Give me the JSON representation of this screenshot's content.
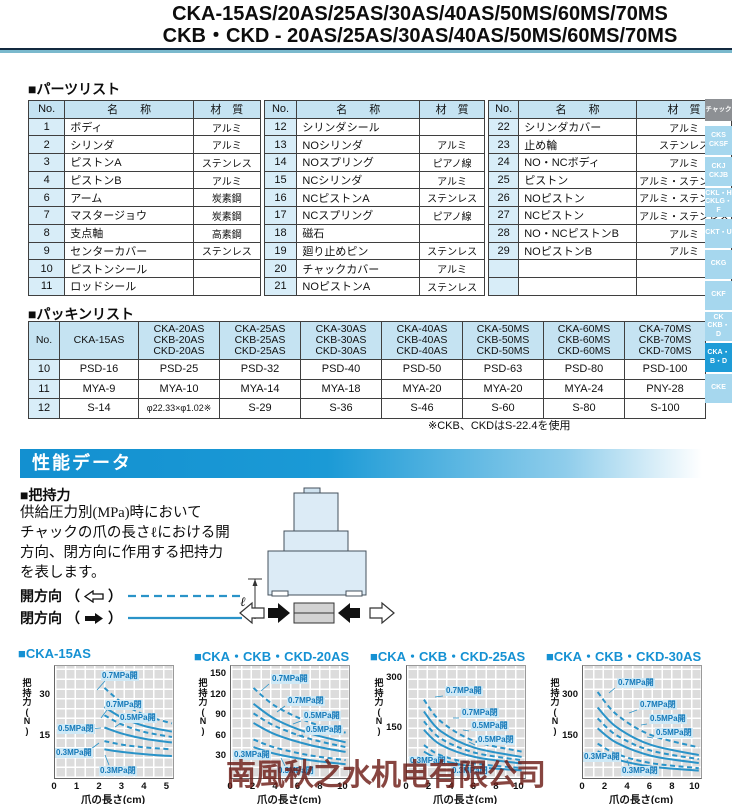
{
  "header": {
    "line1": "CKA-15AS/20AS/25AS/30AS/40AS/50MS/60MS/70MS",
    "line2": "CKB・CKD - 20AS/25AS/30AS/40AS/50MS/60MS/70MS"
  },
  "sidebar": {
    "header": "チャック",
    "active_index": 7,
    "tabs": [
      [
        "CKS",
        "CKSF"
      ],
      [
        "CKJ",
        "CKJB"
      ],
      [
        "CKL・H",
        "CKLG・F"
      ],
      [
        "CKT・U"
      ],
      [
        "CKG"
      ],
      [
        "CKF"
      ],
      [
        "CK",
        "CKB・D"
      ],
      [
        "CKA・B・D"
      ],
      [
        "CKE"
      ]
    ]
  },
  "parts_list": {
    "title": "■パーツリスト",
    "headers": [
      "No.",
      "名　　称",
      "材　質"
    ],
    "tables": [
      [
        [
          "1",
          "ボディ",
          "アルミ"
        ],
        [
          "2",
          "シリンダ",
          "アルミ"
        ],
        [
          "3",
          "ピストンA",
          "ステンレス"
        ],
        [
          "4",
          "ピストンB",
          "アルミ"
        ],
        [
          "6",
          "アーム",
          "炭素鋼"
        ],
        [
          "7",
          "マスタージョウ",
          "炭素鋼"
        ],
        [
          "8",
          "支点軸",
          "高素鋼"
        ],
        [
          "9",
          "センターカバー",
          "ステンレス"
        ],
        [
          "10",
          "ピストンシール",
          ""
        ],
        [
          "11",
          "ロッドシール",
          ""
        ]
      ],
      [
        [
          "12",
          "シリンダシール",
          ""
        ],
        [
          "13",
          "NOシリンダ",
          "アルミ"
        ],
        [
          "14",
          "NOスプリング",
          "ピアノ線"
        ],
        [
          "15",
          "NCシリンダ",
          "アルミ"
        ],
        [
          "16",
          "NCピストンA",
          "ステンレス"
        ],
        [
          "17",
          "NCスプリング",
          "ピアノ線"
        ],
        [
          "18",
          "磁石",
          ""
        ],
        [
          "19",
          "廻り止めピン",
          "ステンレス"
        ],
        [
          "20",
          "チャックカバー",
          "アルミ"
        ],
        [
          "21",
          "NOピストンA",
          "ステンレス"
        ]
      ],
      [
        [
          "22",
          "シリンダカバー",
          "アルミ"
        ],
        [
          "23",
          "止め輪",
          "ステンレス"
        ],
        [
          "24",
          "NO・NCボディ",
          "アルミ"
        ],
        [
          "25",
          "ピストン",
          "アルミ・ステンレス"
        ],
        [
          "26",
          "NOピストン",
          "アルミ・ステンレス"
        ],
        [
          "27",
          "NCピストン",
          "アルミ・ステンレス"
        ],
        [
          "28",
          "NO・NCピストンB",
          "アルミ"
        ],
        [
          "29",
          "NOピストンB",
          "アルミ"
        ],
        [
          "",
          "",
          ""
        ],
        [
          "",
          "",
          ""
        ]
      ]
    ]
  },
  "packing_list": {
    "title": "■パッキンリスト",
    "col_headers": [
      [
        "No."
      ],
      [
        "CKA-15AS"
      ],
      [
        "CKA-20AS",
        "CKB-20AS",
        "CKD-20AS"
      ],
      [
        "CKA-25AS",
        "CKB-25AS",
        "CKD-25AS"
      ],
      [
        "CKA-30AS",
        "CKB-30AS",
        "CKD-30AS"
      ],
      [
        "CKA-40AS",
        "CKB-40AS",
        "CKD-40AS"
      ],
      [
        "CKA-50MS",
        "CKB-50MS",
        "CKD-50MS"
      ],
      [
        "CKA-60MS",
        "CKB-60MS",
        "CKD-60MS"
      ],
      [
        "CKA-70MS",
        "CKB-70MS",
        "CKD-70MS"
      ]
    ],
    "rows": [
      [
        "10",
        "PSD-16",
        "PSD-25",
        "PSD-32",
        "PSD-40",
        "PSD-50",
        "PSD-63",
        "PSD-80",
        "PSD-100"
      ],
      [
        "11",
        "MYA-9",
        "MYA-10",
        "MYA-14",
        "MYA-18",
        "MYA-20",
        "MYA-20",
        "MYA-24",
        "PNY-28"
      ],
      [
        "12",
        "S-14",
        "φ22.33×φ1.02※",
        "S-29",
        "S-36",
        "S-46",
        "S-60",
        "S-80",
        "S-100"
      ]
    ],
    "footnote": "※CKB、CKDはS-22.4を使用"
  },
  "performance": {
    "banner": "性能データ",
    "grip_title": "■把持力",
    "desc_lines": [
      "供給圧力別(MPa)時において",
      "チャックの爪の長さℓにおける開",
      "方向、閉方向に作用する把持力",
      "を表します。"
    ],
    "legend": {
      "open": "開方向",
      "close": "閉方向",
      "po": "（",
      "pc": "）"
    },
    "colors": {
      "curve": "#2a93c8",
      "label_text": "#1478b8",
      "label_bg": "#cfe9f6",
      "title_blue": "#1591d3",
      "banner_blue": "#1b9ad6"
    }
  },
  "chart_data": [
    {
      "type": "line",
      "title": "■CKA-15AS",
      "ylabel": "把持力(N)",
      "xlabel": "爪の長さ(cm)",
      "ymax": 41,
      "xmax": 5.25,
      "yticks": [
        30,
        15
      ],
      "xticks": [
        0,
        1,
        2,
        3,
        4,
        5
      ],
      "series": [
        {
          "label": "0.7MPa開",
          "dashed": true,
          "pts": [
            [
              2.2,
              33
            ],
            [
              3,
              27.5
            ],
            [
              4,
              23
            ],
            [
              5.2,
              20
            ]
          ],
          "lab": [
            46,
            5
          ],
          "lead": [
            50,
            15,
            42,
            24
          ]
        },
        {
          "label": "0.7MPa閉",
          "dashed": false,
          "pts": [
            [
              2.2,
              26
            ],
            [
              3,
              22
            ],
            [
              4,
              19
            ],
            [
              5.2,
              17
            ]
          ],
          "lab": [
            50,
            34
          ],
          "lead": [
            52,
            44,
            46,
            52
          ]
        },
        {
          "label": "0.5MPa開",
          "dashed": true,
          "pts": [
            [
              2.2,
              23
            ],
            [
              3,
              19.5
            ],
            [
              4,
              16.8
            ],
            [
              5.2,
              15
            ]
          ],
          "lab": [
            64,
            47
          ],
          "lead": [
            66,
            57,
            60,
            61
          ]
        },
        {
          "label": "0.5MPa閉",
          "dashed": false,
          "pts": [
            [
              2.2,
              18.5
            ],
            [
              3,
              16.2
            ],
            [
              4,
              14.3
            ],
            [
              5.2,
              13
            ]
          ],
          "lab": [
            2,
            58
          ],
          "lead": [
            34,
            63,
            46,
            62
          ]
        },
        {
          "label": "0.3MPa開",
          "dashed": true,
          "pts": [
            [
              2.2,
              13.5
            ],
            [
              3,
              12.2
            ],
            [
              4,
              11.2
            ],
            [
              5.2,
              10.5
            ]
          ],
          "lab": [
            0,
            82
          ],
          "lead": [
            32,
            86,
            44,
            77
          ]
        },
        {
          "label": "0.3MPa閉",
          "dashed": false,
          "pts": [
            [
              2.2,
              10.5
            ],
            [
              3,
              9.5
            ],
            [
              4,
              8.7
            ],
            [
              5.2,
              8
            ]
          ],
          "lab": [
            44,
            100
          ],
          "lead": [
            54,
            99,
            50,
            89
          ]
        }
      ]
    },
    {
      "type": "line",
      "title": "■CKA・CKB・CKD-20AS",
      "ylabel": "把持力(N)",
      "xlabel": "爪の長さ(cm)",
      "ymax": 163,
      "xmax": 10.5,
      "yticks": [
        150,
        120,
        90,
        60,
        30
      ],
      "xticks": [
        0,
        2,
        4,
        6,
        8,
        10
      ],
      "series": [
        {
          "label": "0.7MPa開",
          "dashed": true,
          "pts": [
            [
              2,
              131
            ],
            [
              4,
              104
            ],
            [
              7,
              81
            ],
            [
              10.2,
              66
            ]
          ],
          "lab": [
            40,
            8
          ],
          "lead": [
            38,
            18,
            30,
            25
          ]
        },
        {
          "label": "0.7MPa閉",
          "dashed": false,
          "pts": [
            [
              2,
              108
            ],
            [
              4,
              85
            ],
            [
              7,
              65
            ],
            [
              10.2,
              52
            ]
          ],
          "lab": [
            56,
            30
          ],
          "lead": [
            54,
            40,
            46,
            46
          ]
        },
        {
          "label": "0.5MPa開",
          "dashed": true,
          "pts": [
            [
              2,
              94
            ],
            [
              4,
              75
            ],
            [
              7,
              57
            ],
            [
              10.2,
              45
            ]
          ],
          "lab": [
            72,
            45
          ],
          "lead": [
            70,
            55,
            62,
            58
          ]
        },
        {
          "label": "0.5MPa閉",
          "dashed": false,
          "pts": [
            [
              2,
              80
            ],
            [
              4,
              63
            ],
            [
              7,
              48
            ],
            [
              10.2,
              38
            ]
          ],
          "lab": [
            74,
            59
          ],
          "lead": [
            72,
            69,
            66,
            70
          ]
        },
        {
          "label": "0.3MPa開",
          "dashed": true,
          "pts": [
            [
              2,
              56
            ],
            [
              4,
              44
            ],
            [
              7,
              33
            ],
            [
              10.2,
              26
            ]
          ],
          "lab": [
            2,
            84
          ],
          "lead": [
            34,
            89,
            40,
            84
          ]
        },
        {
          "label": "0.3MPa閉",
          "dashed": false,
          "pts": [
            [
              2,
              45
            ],
            [
              4,
              35
            ],
            [
              7,
              26
            ],
            [
              10.2,
              20
            ]
          ],
          "lab": [
            46,
            100
          ],
          "lead": [
            54,
            100,
            50,
            92
          ]
        }
      ]
    },
    {
      "type": "line",
      "title": "■CKA・CKB・CKD-25AS",
      "ylabel": "把持力(N)",
      "xlabel": "爪の長さ(cm)",
      "ymax": 340,
      "xmax": 10.5,
      "yticks": [
        300,
        150
      ],
      "xticks": [
        0,
        2,
        4,
        6,
        8,
        10
      ],
      "series": [
        {
          "label": "0.7MPa開",
          "dashed": true,
          "pts": [
            [
              1.5,
              238
            ],
            [
              3,
              172
            ],
            [
              6,
              112
            ],
            [
              10.2,
              80
            ]
          ],
          "lab": [
            38,
            20
          ],
          "lead": [
            36,
            30,
            28,
            31
          ]
        },
        {
          "label": "0.7MPa閉",
          "dashed": false,
          "pts": [
            [
              1.5,
              202
            ],
            [
              3,
              142
            ],
            [
              6,
              92
            ],
            [
              10.2,
              64
            ]
          ],
          "lab": [
            54,
            42
          ],
          "lead": [
            52,
            52,
            46,
            52
          ]
        },
        {
          "label": "0.5MPa開",
          "dashed": true,
          "pts": [
            [
              1.5,
              172
            ],
            [
              3,
              120
            ],
            [
              6,
              77
            ],
            [
              10.2,
              54
            ]
          ],
          "lab": [
            64,
            55
          ],
          "lead": [
            62,
            65,
            56,
            64
          ]
        },
        {
          "label": "0.5MPa閉",
          "dashed": false,
          "pts": [
            [
              1.5,
              146
            ],
            [
              3,
              101
            ],
            [
              6,
              64
            ],
            [
              10.2,
              44
            ]
          ],
          "lab": [
            70,
            69
          ],
          "lead": [
            68,
            79,
            62,
            76
          ]
        },
        {
          "label": "0.3MPa開",
          "dashed": true,
          "pts": [
            [
              1.5,
              100
            ],
            [
              3,
              69
            ],
            [
              6,
              44
            ],
            [
              10.2,
              30
            ]
          ],
          "lab": [
            2,
            90
          ],
          "lead": [
            34,
            95,
            40,
            90
          ]
        },
        {
          "label": "0.3MPa閉",
          "dashed": false,
          "pts": [
            [
              1.5,
              80
            ],
            [
              3,
              55
            ],
            [
              6,
              34
            ],
            [
              10.2,
              23
            ]
          ],
          "lab": [
            44,
            100
          ],
          "lead": [
            52,
            100,
            48,
            94
          ]
        }
      ]
    },
    {
      "type": "line",
      "title": "■CKA・CKB・CKD-30AS",
      "ylabel": "把持力(N)",
      "xlabel": "爪の長さ(cm)",
      "ymax": 410,
      "xmax": 10.5,
      "yticks": [
        300,
        150
      ],
      "xticks": [
        0,
        2,
        4,
        6,
        8,
        10
      ],
      "series": [
        {
          "label": "0.7MPa開",
          "dashed": true,
          "pts": [
            [
              1.3,
              315
            ],
            [
              3,
              232
            ],
            [
              6,
              158
            ],
            [
              10.3,
              112
            ]
          ],
          "lab": [
            34,
            12
          ],
          "lead": [
            32,
            22,
            26,
            27
          ]
        },
        {
          "label": "0.7MPa閉",
          "dashed": false,
          "pts": [
            [
              1.3,
              258
            ],
            [
              3,
              186
            ],
            [
              6,
              122
            ],
            [
              10.3,
              84
            ]
          ],
          "lab": [
            56,
            34
          ],
          "lead": [
            54,
            44,
            46,
            47
          ]
        },
        {
          "label": "0.5MPa開",
          "dashed": true,
          "pts": [
            [
              1.3,
              218
            ],
            [
              3,
              156
            ],
            [
              6,
              101
            ],
            [
              10.3,
              69
            ]
          ],
          "lab": [
            66,
            48
          ],
          "lead": [
            64,
            58,
            58,
            59
          ]
        },
        {
          "label": "0.5MPa閉",
          "dashed": false,
          "pts": [
            [
              1.3,
              182
            ],
            [
              3,
              129
            ],
            [
              6,
              82
            ],
            [
              10.3,
              55
            ]
          ],
          "lab": [
            72,
            62
          ],
          "lead": [
            70,
            72,
            64,
            71
          ]
        },
        {
          "label": "0.3MPa開",
          "dashed": true,
          "pts": [
            [
              1.3,
              126
            ],
            [
              3,
              88
            ],
            [
              6,
              55
            ],
            [
              10.3,
              36
            ]
          ],
          "lab": [
            0,
            86
          ],
          "lead": [
            32,
            91,
            38,
            86
          ]
        },
        {
          "label": "0.3MPa閉",
          "dashed": false,
          "pts": [
            [
              1.3,
              98
            ],
            [
              3,
              68
            ],
            [
              6,
              42
            ],
            [
              10.3,
              27
            ]
          ],
          "lab": [
            38,
            100
          ],
          "lead": [
            46,
            100,
            44,
            94
          ]
        }
      ]
    }
  ],
  "watermark": {
    "text": "南風秋之水机电有限公司"
  }
}
